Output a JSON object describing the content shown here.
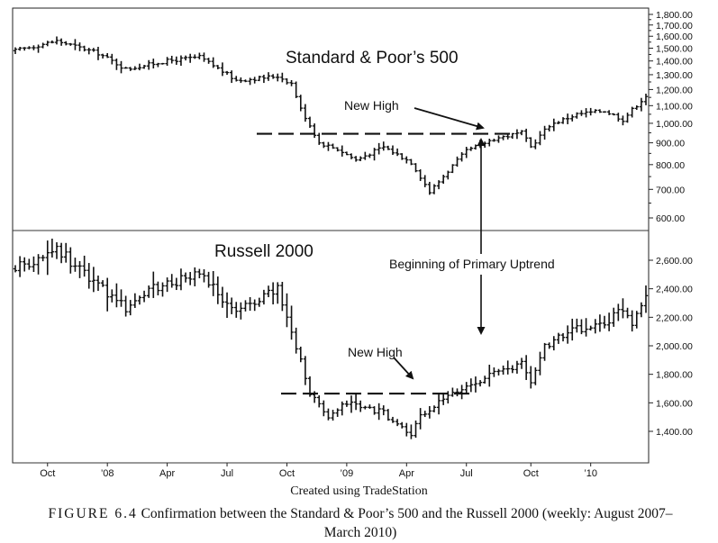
{
  "chart_data": [
    {
      "type": "bar",
      "name": "S&P 500 weekly OHLC",
      "title": "Standard & Poor’s 500",
      "x_tick_labels": [
        "Oct",
        "’08",
        "Apr",
        "Jul",
        "Oct",
        "’09",
        "Apr",
        "Jul",
        "Oct",
        "’10"
      ],
      "y_tick_labels": [
        "1,800.00",
        "1,700.00",
        "1,600.00",
        "1,500.00",
        "1,400.00",
        "1,300.00",
        "1,200.00",
        "1,100.00",
        "1,000.00",
        "900.00",
        "800.00",
        "700.00",
        "600.00"
      ],
      "y_ticks": [
        1800,
        1700,
        1600,
        1500,
        1400,
        1300,
        1200,
        1100,
        1000,
        900,
        800,
        700,
        600
      ],
      "ylim": [
        560,
        1820
      ],
      "scale": "log",
      "weeks": 138,
      "series": [
        {
          "name": "S&P 500 weekly close (approx.)",
          "anchors": [
            [
              0,
              1480
            ],
            [
              9,
              1560
            ],
            [
              18,
              1460
            ],
            [
              24,
              1340
            ],
            [
              33,
              1400
            ],
            [
              40,
              1430
            ],
            [
              48,
              1260
            ],
            [
              57,
              1290
            ],
            [
              60,
              1240
            ],
            [
              62,
              1080
            ],
            [
              66,
              900
            ],
            [
              70,
              870
            ],
            [
              74,
              820
            ],
            [
              80,
              880
            ],
            [
              86,
              810
            ],
            [
              90,
              690
            ],
            [
              92,
              730
            ],
            [
              98,
              860
            ],
            [
              104,
              920
            ],
            [
              110,
              950
            ],
            [
              112,
              880
            ],
            [
              116,
              990
            ],
            [
              122,
              1050
            ],
            [
              128,
              1070
            ],
            [
              132,
              1020
            ],
            [
              137,
              1160
            ]
          ]
        }
      ],
      "annotations": {
        "new_high": "New High",
        "breakout_level": 945
      }
    },
    {
      "type": "bar",
      "name": "Russell 2000 weekly OHLC",
      "title": "Russell 2000",
      "y_tick_labels": [
        "2,600.00",
        "2,400.00",
        "2,200.00",
        "2,000.00",
        "1,800.00",
        "1,600.00",
        "1,400.00"
      ],
      "y_ticks": [
        2600,
        2400,
        2200,
        2000,
        1800,
        1600,
        1400
      ],
      "ylim": [
        1240,
        2760
      ],
      "scale": "linear",
      "weeks": 138,
      "series": [
        {
          "name": "Russell 2000 weekly close (approx.)",
          "anchors": [
            [
              0,
              2540
            ],
            [
              9,
              2680
            ],
            [
              18,
              2420
            ],
            [
              24,
              2270
            ],
            [
              30,
              2400
            ],
            [
              40,
              2500
            ],
            [
              48,
              2240
            ],
            [
              57,
              2400
            ],
            [
              61,
              2000
            ],
            [
              64,
              1680
            ],
            [
              68,
              1480
            ],
            [
              72,
              1600
            ],
            [
              76,
              1560
            ],
            [
              80,
              1530
            ],
            [
              86,
              1370
            ],
            [
              88,
              1500
            ],
            [
              94,
              1640
            ],
            [
              102,
              1780
            ],
            [
              110,
              1870
            ],
            [
              112,
              1740
            ],
            [
              115,
              2000
            ],
            [
              122,
              2120
            ],
            [
              128,
              2150
            ],
            [
              132,
              2260
            ],
            [
              134,
              2160
            ],
            [
              137,
              2370
            ]
          ]
        }
      ],
      "annotations": {
        "new_high": "New High",
        "breakout_level": 1665
      }
    }
  ],
  "annotation_beginning": "Beginning of Primary Uptrend",
  "caption": {
    "credit": "Created using TradeStation",
    "figure_label": "FIGURE 6.4",
    "text": "Confirmation between the Standard & Poor’s 500 and the Russell 2000 (weekly: August 2007–March 2010)"
  }
}
